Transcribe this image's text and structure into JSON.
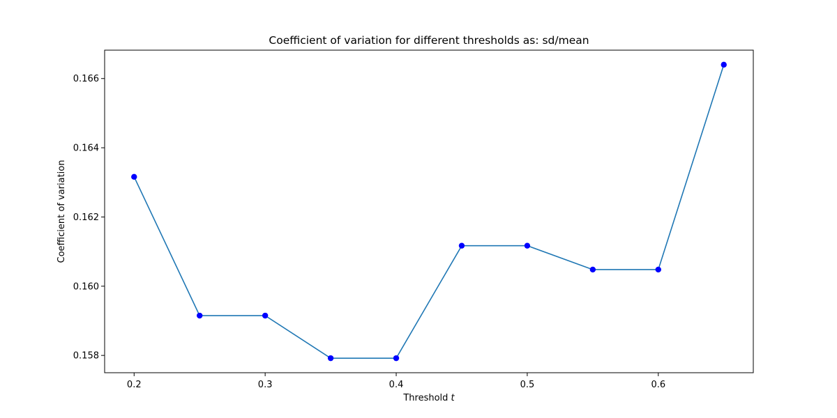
{
  "chart_data": {
    "type": "line",
    "title": "Coefficient of variation for different thresholds as: sd/mean",
    "xlabel": "Threshold",
    "xlabel_var": "t",
    "ylabel": "Coefficient of variation",
    "x": [
      0.2,
      0.25,
      0.3,
      0.35,
      0.4,
      0.45,
      0.5,
      0.55,
      0.6,
      0.65
    ],
    "y": [
      0.16316,
      0.15915,
      0.15915,
      0.15792,
      0.15792,
      0.16117,
      0.16117,
      0.16048,
      0.16048,
      0.1664
    ],
    "xlim": [
      0.1775,
      0.6725
    ],
    "ylim": [
      0.1575,
      0.16682
    ],
    "xticks": [
      0.2,
      0.3,
      0.4,
      0.5,
      0.6
    ],
    "xtick_labels": [
      "0.2",
      "0.3",
      "0.4",
      "0.5",
      "0.6"
    ],
    "yticks": [
      0.158,
      0.16,
      0.162,
      0.164,
      0.166
    ],
    "ytick_labels": [
      "0.158",
      "0.160",
      "0.162",
      "0.164",
      "0.166"
    ],
    "line_color": "#1f77b4",
    "marker_color": "#0000ff",
    "grid": false,
    "legend": "none"
  }
}
